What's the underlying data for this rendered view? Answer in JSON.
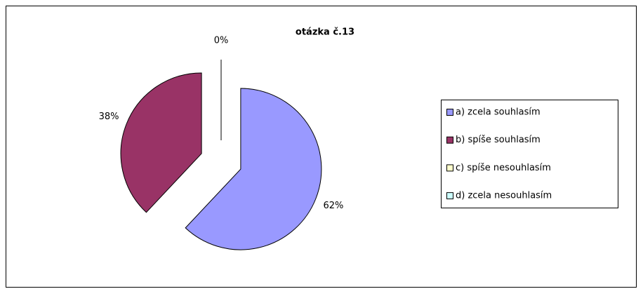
{
  "chart_data": {
    "type": "pie",
    "title": "otázka č.13",
    "categories": [
      "a) zcela souhlasím",
      "b) spíše souhlasím",
      "c) spíše nesouhlasím",
      "d) zcela nesouhlasím"
    ],
    "values": [
      62,
      38,
      0,
      0
    ],
    "value_labels": [
      "62%",
      "38%",
      "0%",
      null
    ],
    "colors": [
      "#9999ff",
      "#993366",
      "#ffffcc",
      "#ccffff"
    ],
    "exploded": true,
    "legend": "right"
  }
}
